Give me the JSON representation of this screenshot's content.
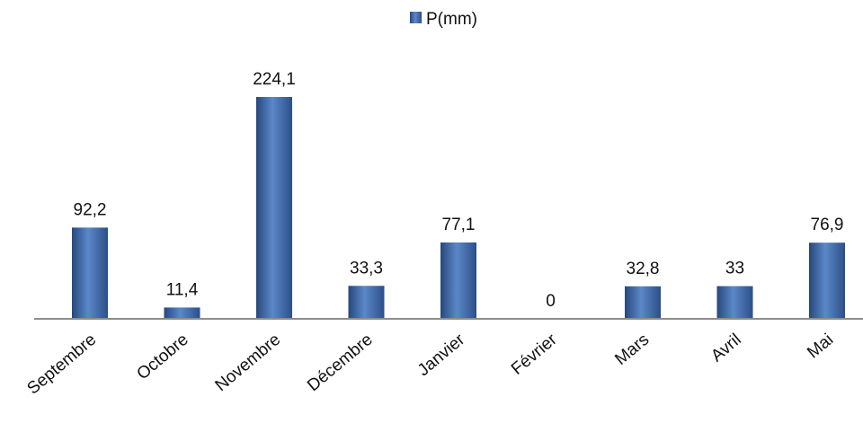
{
  "chart_data": {
    "type": "bar",
    "title": "",
    "xlabel": "",
    "ylabel": "",
    "categories": [
      "Septembre",
      "Octobre",
      "Novembre",
      "Décembre",
      "Janvier",
      "Février",
      "Mars",
      "Avril",
      "Mai"
    ],
    "series": [
      {
        "name": "P(mm)",
        "values": [
          92.2,
          11.4,
          224.1,
          33.3,
          77.1,
          0,
          32.8,
          33,
          76.9
        ],
        "data_labels": [
          "92,2",
          "11,4",
          "224,1",
          "33,3",
          "77,1",
          "0",
          "32,8",
          "33",
          "76,9"
        ],
        "color": "#4a76b5"
      }
    ],
    "ylim": [
      0,
      224.1
    ],
    "grid": false,
    "legend_position": "top-center",
    "tick_label_rotation": "diagonal"
  }
}
